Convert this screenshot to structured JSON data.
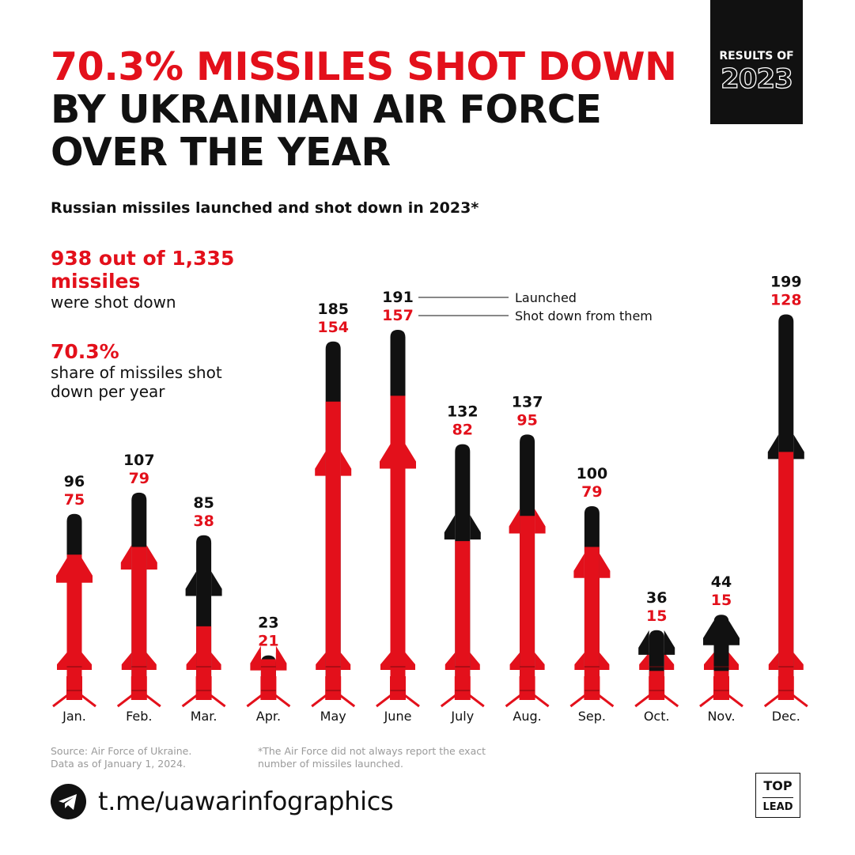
{
  "header": {
    "title_red": "70.3% MISSILES SHOT DOWN",
    "title_black": " BY UKRAINIAN AIR FORCE OVER THE YEAR",
    "badge_top": "RESULTS OF",
    "badge_year": "2023",
    "subtitle": "Russian missiles launched and shot down in 2023*"
  },
  "stats": {
    "total_big": "938 out of 1,335 missiles",
    "total_small": "were shot down",
    "share_big": "70.3%",
    "share_small": "share of missiles shot down per year"
  },
  "chart_data": {
    "type": "bar",
    "title": "Russian missiles launched and shot down in 2023*",
    "categories": [
      "Jan.",
      "Feb.",
      "Mar.",
      "Apr.",
      "May",
      "June",
      "July",
      "Aug.",
      "Sep.",
      "Oct.",
      "Nov.",
      "Dec."
    ],
    "series": [
      {
        "name": "Launched",
        "values": [
          96,
          107,
          85,
          23,
          185,
          191,
          132,
          137,
          100,
          36,
          44,
          199
        ]
      },
      {
        "name": "Shot down from them",
        "values": [
          75,
          79,
          38,
          21,
          154,
          157,
          82,
          95,
          79,
          15,
          15,
          128
        ]
      }
    ],
    "legend_annotation_month": "June",
    "colors": {
      "launched": "#111111",
      "shot_down": "#e3101b"
    }
  },
  "footer": {
    "source_line1": "Source: Air Force of Ukraine.",
    "source_line2": "Data as of January 1, 2024.",
    "note_line1": "*The Air Force did not always report the exact",
    "note_line2": "number of missiles launched.",
    "link": "t.me/uawarinfographics",
    "logo_top": "TOP",
    "logo_bottom": "LEAD"
  },
  "icons": {
    "telegram": "telegram-icon"
  }
}
